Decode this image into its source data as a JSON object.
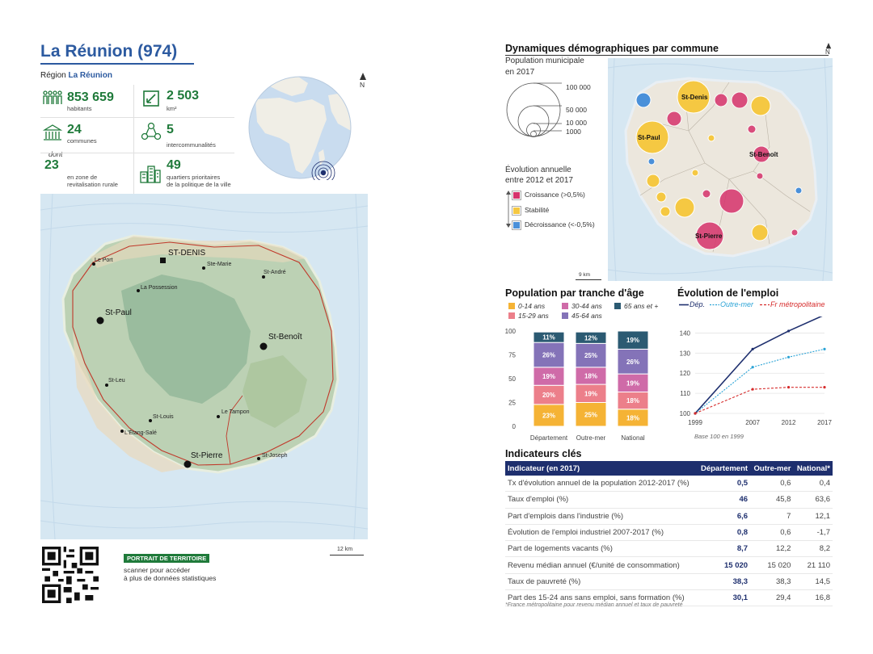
{
  "header": {
    "title": "La Réunion (974)",
    "region_label": "Région",
    "region_name": "La Réunion"
  },
  "stats": {
    "habitants": {
      "value": "853 659",
      "label": "habitants"
    },
    "superficie": {
      "value": "2 503",
      "label": "km²"
    },
    "communes": {
      "value": "24",
      "label": "communes"
    },
    "intercommunalites": {
      "value": "5",
      "label": "intercommunalités"
    },
    "dont": "dont",
    "zrr": {
      "value": "23",
      "label1": "en zone de",
      "label2": "revitalisation rurale"
    },
    "qpv": {
      "value": "49",
      "label1": "quartiers prioritaires",
      "label2": "de la politique de la ville"
    }
  },
  "north_label": "N",
  "main_map": {
    "towns": [
      "ST-DENIS",
      "Le Port",
      "Ste-Marie",
      "St-André",
      "La Possession",
      "St-Paul",
      "St-Benoît",
      "St-Leu",
      "St-Louis",
      "Le Tampon",
      "L'Étang-Salé",
      "St-Pierre",
      "St-Joseph"
    ],
    "scale": "12 km"
  },
  "footer": {
    "badge": "PORTRAIT DE TERRITOIRE",
    "line1": "scanner pour accéder",
    "line2": "à plus de données statistiques"
  },
  "demo": {
    "title": "Dynamiques démographiques par commune",
    "pop_title": "Population municipale",
    "pop_sub": "en 2017",
    "sizes": [
      "100 000",
      "50 000",
      "10 000",
      "1000"
    ],
    "evo_title": "Évolution annuelle",
    "evo_sub": "entre 2012 et 2017",
    "legend": [
      {
        "label": "Croissance (>0,5%)",
        "color": "#d6336c"
      },
      {
        "label": "Stabilité",
        "color": "#f5c842"
      },
      {
        "label": "Décroissance (<-0,5%)",
        "color": "#4a90d9"
      }
    ],
    "map_labels": [
      "St-Denis",
      "St-Paul",
      "St-Benoît",
      "St-Pierre"
    ],
    "scale": "9 km"
  },
  "chart_data": [
    {
      "type": "bar",
      "title": "Population par tranche d'âge",
      "categories": [
        "Département",
        "Outre-mer",
        "National"
      ],
      "ylim": [
        0,
        100
      ],
      "yticks": [
        "0",
        "25",
        "50",
        "75",
        "100"
      ],
      "series": [
        {
          "name": "0-14 ans",
          "color": "#f5b335",
          "values": [
            23,
            25,
            18
          ],
          "labels": [
            "23%",
            "25%",
            "18%"
          ]
        },
        {
          "name": "15-29 ans",
          "color": "#ec7f8a",
          "values": [
            20,
            19,
            18
          ],
          "labels": [
            "20%",
            "19%",
            "18%"
          ]
        },
        {
          "name": "30-44 ans",
          "color": "#cf6ba8",
          "values": [
            19,
            18,
            19
          ],
          "labels": [
            "19%",
            "18%",
            "19%"
          ]
        },
        {
          "name": "45-64 ans",
          "color": "#8473b8",
          "values": [
            26,
            25,
            26
          ],
          "labels": [
            "26%",
            "25%",
            "26%"
          ]
        },
        {
          "name": "65 ans et +",
          "color": "#2b5a72",
          "values": [
            11,
            12,
            19
          ],
          "labels": [
            "11%",
            "12%",
            "19%"
          ]
        }
      ]
    },
    {
      "type": "line",
      "title": "Évolution de l'emploi",
      "x": [
        "1999",
        "2007",
        "2012",
        "2017"
      ],
      "ylim": [
        100,
        145
      ],
      "yticks": [
        "100",
        "110",
        "120",
        "130",
        "140"
      ],
      "note": "Base 100 en 1999",
      "series": [
        {
          "name": "Dép.",
          "color": "#1e2f6e",
          "values": [
            100,
            132,
            141,
            149
          ]
        },
        {
          "name": "Outre-mer",
          "color": "#2aa3d6",
          "values": [
            100,
            123,
            128,
            132
          ]
        },
        {
          "name": "Fr métropolitaine",
          "color": "#d62b2b",
          "values": [
            100,
            112,
            113,
            113
          ]
        }
      ]
    }
  ],
  "indicators": {
    "title": "Indicateurs clés",
    "headers": [
      "Indicateur (en 2017)",
      "Département",
      "Outre-mer",
      "National*"
    ],
    "rows": [
      [
        "Tx d'évolution annuel de la population 2012-2017 (%)",
        "0,5",
        "0,6",
        "0,4"
      ],
      [
        "Taux d'emploi (%)",
        "46",
        "45,8",
        "63,6"
      ],
      [
        "Part d'emplois dans l'industrie (%)",
        "6,6",
        "7",
        "12,1"
      ],
      [
        "Évolution de l'emploi industriel 2007-2017 (%)",
        "0,8",
        "0,6",
        "-1,7"
      ],
      [
        "Part de logements vacants (%)",
        "8,7",
        "12,2",
        "8,2"
      ],
      [
        "Revenu médian annuel (€/unité de consommation)",
        "15 020",
        "15 020",
        "21 110"
      ],
      [
        "Taux de pauvreté (%)",
        "38,3",
        "38,3",
        "14,5"
      ],
      [
        "Part des 15-24 ans sans emploi, sans formation (%)",
        "30,1",
        "29,4",
        "16,8"
      ]
    ],
    "footnote": "*France métropolitaine pour revenu médian annuel et taux de pauvreté"
  }
}
